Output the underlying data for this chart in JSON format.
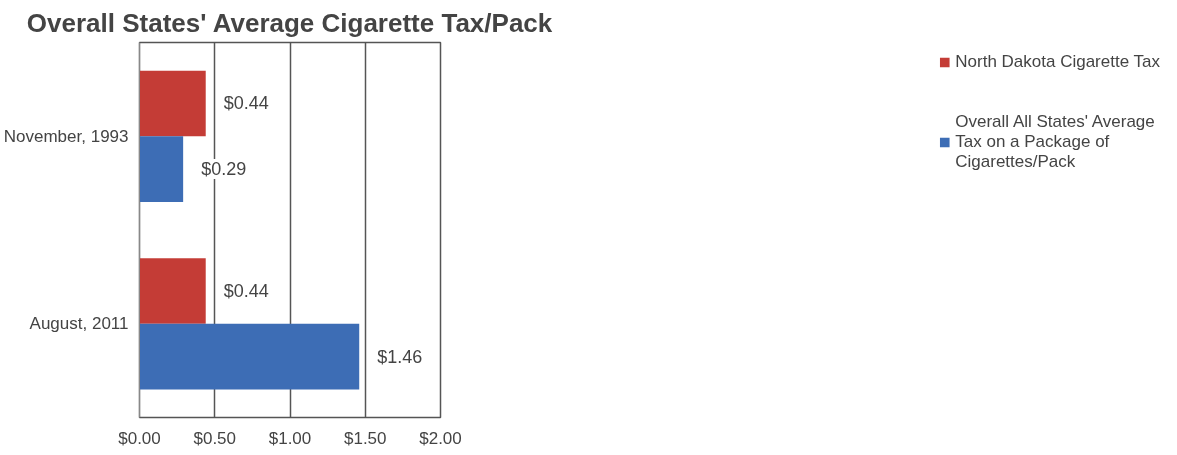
{
  "chart_data": {
    "type": "bar",
    "orientation": "horizontal",
    "title": "Overall States' Average Cigarette Tax/Pack",
    "categories": [
      "November, 1993",
      "August, 2011"
    ],
    "series": [
      {
        "name": "North Dakota Cigarette Tax",
        "color": "#c43c36",
        "values": [
          0.44,
          0.44
        ],
        "value_labels": [
          "$0.44",
          "$0.44"
        ]
      },
      {
        "name": "Overall All States' Average Tax on a Package of Cigarettes/Pack",
        "color": "#3d6db5",
        "values": [
          0.29,
          1.46
        ],
        "value_labels": [
          "$0.29",
          "$1.46"
        ]
      }
    ],
    "xlim": [
      0,
      2
    ],
    "xticks": [
      {
        "value": 0,
        "label": "$0.00"
      },
      {
        "value": 0.5,
        "label": "$0.50"
      },
      {
        "value": 1,
        "label": "$1.00"
      },
      {
        "value": 1.5,
        "label": "$1.50"
      },
      {
        "value": 2,
        "label": "$2.00"
      }
    ],
    "grid": "x",
    "legend": "right"
  }
}
